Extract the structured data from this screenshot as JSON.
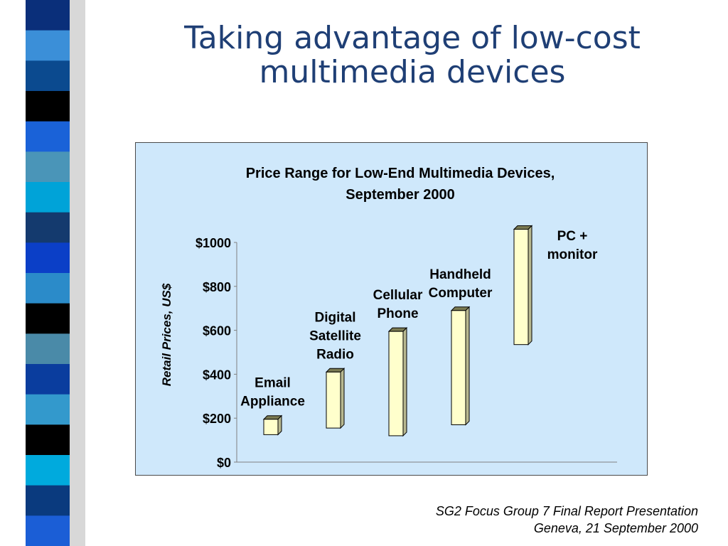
{
  "slide": {
    "title_lines": [
      "Taking advantage of low-cost",
      "multimedia devices"
    ],
    "footer_lines": [
      "SG2 Focus Group 7 Final Report Presentation",
      "Geneva, 21 September 2000"
    ]
  },
  "decor": {
    "strip_colors": [
      "#0a2f7a",
      "#3b8fd8",
      "#0b4a8f",
      "#000000",
      "#1a62d8",
      "#4a95b8",
      "#00a3d8",
      "#143a6e",
      "#0b3fc7",
      "#2b8bc9",
      "#000000",
      "#4a8aa8",
      "#0a3d9e",
      "#3399cc",
      "#000000",
      "#00aadd",
      "#0a3a7e",
      "#1b5ed6"
    ]
  },
  "chart_data": {
    "type": "bar",
    "subtype": "floating-range",
    "title_lines": [
      "Price Range for Low-End Multimedia Devices,",
      "September 2000"
    ],
    "ylabel": "Retail Prices, US$",
    "xlabel": "",
    "ylim": [
      0,
      1000
    ],
    "y_ticks": [
      {
        "value": 0,
        "label": "$0"
      },
      {
        "value": 200,
        "label": "$200"
      },
      {
        "value": 400,
        "label": "$400"
      },
      {
        "value": 600,
        "label": "$600"
      },
      {
        "value": 800,
        "label": "$800"
      },
      {
        "value": 1000,
        "label": "$1000"
      }
    ],
    "grid": false,
    "bar_color": "#ffffcc",
    "categories": [
      {
        "label_lines": [
          "Email",
          "Appliance"
        ],
        "low": 125,
        "high": 195
      },
      {
        "label_lines": [
          "Digital",
          "Satellite",
          "Radio"
        ],
        "low": 155,
        "high": 410
      },
      {
        "label_lines": [
          "Cellular",
          "Phone"
        ],
        "low": 120,
        "high": 595
      },
      {
        "label_lines": [
          "Handheld",
          "Computer"
        ],
        "low": 170,
        "high": 690
      },
      {
        "label_lines": [
          "PC +",
          "monitor"
        ],
        "low": 535,
        "high": 1060
      }
    ]
  }
}
